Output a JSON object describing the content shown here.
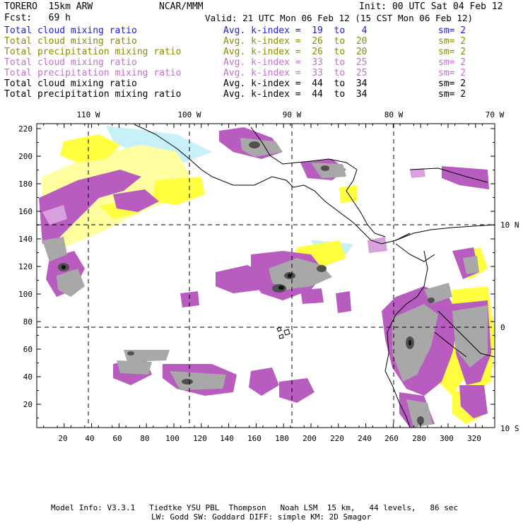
{
  "header": {
    "model": "TORERO  15km ARW",
    "center": "NCAR/MMM",
    "init": "Init: 00 UTC Sat 04 Feb 12",
    "fcst": "Fcst:   69 h",
    "valid": "Valid: 21 UTC Mon 06 Feb 12 (15 CST Mon 06 Feb 12)"
  },
  "legend": [
    {
      "field": "Total cloud mixing ratio",
      "avg": "Avg. k-index =  19  to   4",
      "sm": "sm= 2",
      "color": "#1f1fd0"
    },
    {
      "field": "Total cloud mixing ratio",
      "avg": "Avg. k-index =  26  to  20",
      "sm": "sm= 2",
      "color": "#8c8c00"
    },
    {
      "field": "Total precipitation mixing ratio",
      "avg": "Avg. k-index =  26  to  20",
      "sm": "sm= 2",
      "color": "#8c8c00"
    },
    {
      "field": "Total cloud mixing ratio",
      "avg": "Avg. k-index =  33  to  25",
      "sm": "sm= 2",
      "color": "#c070c8"
    },
    {
      "field": "Total precipitation mixing ratio",
      "avg": "Avg. k-index =  33  to  25",
      "sm": "sm= 2",
      "color": "#c070c8"
    },
    {
      "field": "Total cloud mixing ratio",
      "avg": "Avg. k-index =  44  to  34",
      "sm": "sm= 2",
      "color": "#000000"
    },
    {
      "field": "Total precipitation mixing ratio",
      "avg": "Avg. k-index =  44  to  34",
      "sm": "sm= 2",
      "color": "#000000"
    }
  ],
  "map": {
    "x_ticks": [
      "20",
      "40",
      "60",
      "80",
      "100",
      "120",
      "140",
      "160",
      "180",
      "200",
      "220",
      "240",
      "260",
      "280",
      "300",
      "320"
    ],
    "y_ticks": [
      "20",
      "40",
      "60",
      "80",
      "100",
      "120",
      "140",
      "160",
      "180",
      "200",
      "220"
    ],
    "lon_labels": [
      "110 W",
      "100 W",
      "90 W",
      "80 W",
      "70 W"
    ],
    "lat_labels": [
      "10 N",
      "0",
      "10 S"
    ],
    "colors": {
      "light_blue": "#c8f0f8",
      "yellow": "#ffff40",
      "light_yellow": "#ffffa0",
      "purple": "#b85cc0",
      "light_purple": "#d8a0dc",
      "gray": "#a8a8a8",
      "dark_gray": "#505050",
      "black": "#101010"
    }
  },
  "footer": {
    "line1": "Model Info: V3.3.1   Tiedtke YSU PBL  Thompson   Noah LSM  15 km,   44 levels,   86 sec",
    "line2": "LW: Godd SW: Goddard DIFF: simple KM: 2D Smagor"
  }
}
